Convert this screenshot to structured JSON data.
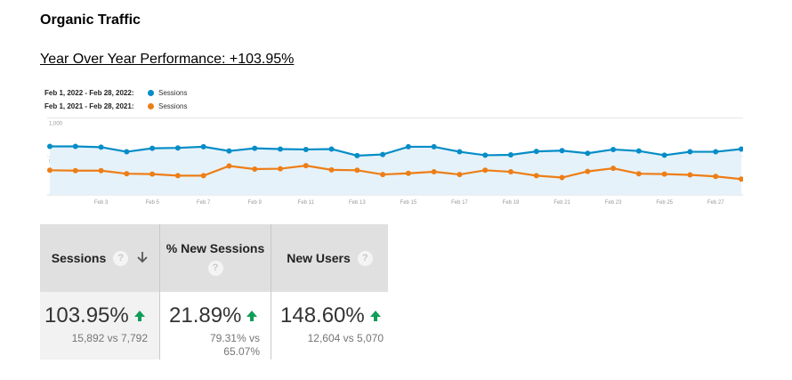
{
  "doc": {
    "title": "Organic Traffic",
    "yoy": "Year Over Year Performance: +103.95%"
  },
  "legend": [
    {
      "range": "Feb 1, 2022 - Feb 28, 2022:",
      "name": "Sessions",
      "color": "#058dc7"
    },
    {
      "range": "Feb 1, 2021 - Feb 28, 2021:",
      "name": "Sessions",
      "color": "#ed7e17"
    }
  ],
  "chart_data": {
    "type": "line",
    "x": [
      1,
      2,
      3,
      4,
      5,
      6,
      7,
      8,
      9,
      10,
      11,
      12,
      13,
      14,
      15,
      16,
      17,
      18,
      19,
      20,
      21,
      22,
      23,
      24,
      25,
      26,
      27,
      28
    ],
    "xticks": [
      "Feb 3",
      "Feb 5",
      "Feb 7",
      "Feb 9",
      "Feb 11",
      "Feb 13",
      "Feb 15",
      "Feb 17",
      "Feb 19",
      "Feb 21",
      "Feb 23",
      "Feb 25",
      "Feb 27"
    ],
    "xtick_values": [
      3,
      5,
      7,
      9,
      11,
      13,
      15,
      17,
      19,
      21,
      23,
      25,
      27
    ],
    "yticks": [
      "1,000",
      "500"
    ],
    "ytick_values": [
      1000,
      500
    ],
    "ylim": [
      0,
      1040
    ],
    "series": [
      {
        "name": "Sessions",
        "color": "#058dc7",
        "values": [
          630,
          630,
          620,
          560,
          605,
          610,
          625,
          570,
          605,
          595,
          590,
          595,
          510,
          525,
          625,
          625,
          560,
          515,
          520,
          565,
          575,
          540,
          590,
          570,
          515,
          560,
          560,
          595
        ]
      },
      {
        "name": "Sessions",
        "color": "#ed7e17",
        "values": [
          320,
          315,
          315,
          275,
          270,
          250,
          250,
          375,
          335,
          340,
          380,
          325,
          320,
          265,
          280,
          300,
          265,
          320,
          300,
          250,
          225,
          305,
          345,
          275,
          270,
          260,
          240,
          205
        ]
      }
    ]
  },
  "scorecards": [
    {
      "label": "Sessions",
      "value": "103.95%",
      "compare": "15,892 vs 7,792",
      "active": true
    },
    {
      "label": "% New Sessions",
      "value": "21.89%",
      "compare_line1": "79.31% vs",
      "compare_line2": "65.07%"
    },
    {
      "label": "New Users",
      "value": "148.60%",
      "compare": "12,604 vs 5,070"
    }
  ],
  "icons": {
    "help": "?",
    "sort": "sort-down-arrow-icon",
    "trend": "up-arrow-icon"
  }
}
